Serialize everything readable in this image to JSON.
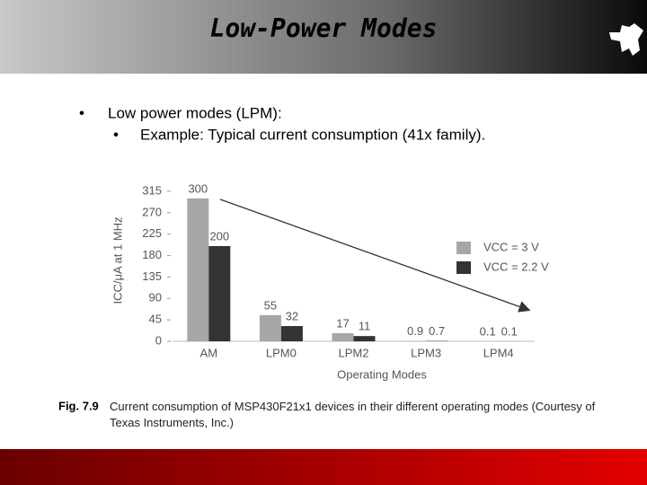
{
  "header": {
    "title": "Low-Power Modes"
  },
  "bullets": [
    {
      "text": "Low power modes (LPM):",
      "sub": [
        "Example: Typical current consumption (41x family)."
      ]
    }
  ],
  "chart_data": {
    "type": "bar",
    "ylabel": "ICC/μA at 1 MHz",
    "xlabel": "Operating Modes",
    "categories": [
      "AM",
      "LPM0",
      "LPM2",
      "LPM3",
      "LPM4"
    ],
    "series": [
      {
        "name": "VCC = 3 V",
        "color": "#a6a6a6",
        "values": [
          300,
          55,
          17,
          0.9,
          0.1
        ]
      },
      {
        "name": "VCC = 2.2 V",
        "color": "#333333",
        "values": [
          200,
          32,
          11,
          0.7,
          0.1
        ]
      }
    ],
    "ylim": [
      0,
      315
    ],
    "yticks": [
      0,
      45,
      90,
      135,
      180,
      225,
      270,
      315
    ],
    "legend": "right"
  },
  "caption": {
    "label": "Fig. 7.9",
    "text": "Current consumption of MSP430F21x1 devices in their different operating modes (Courtesy of Texas Instruments, Inc.)"
  }
}
